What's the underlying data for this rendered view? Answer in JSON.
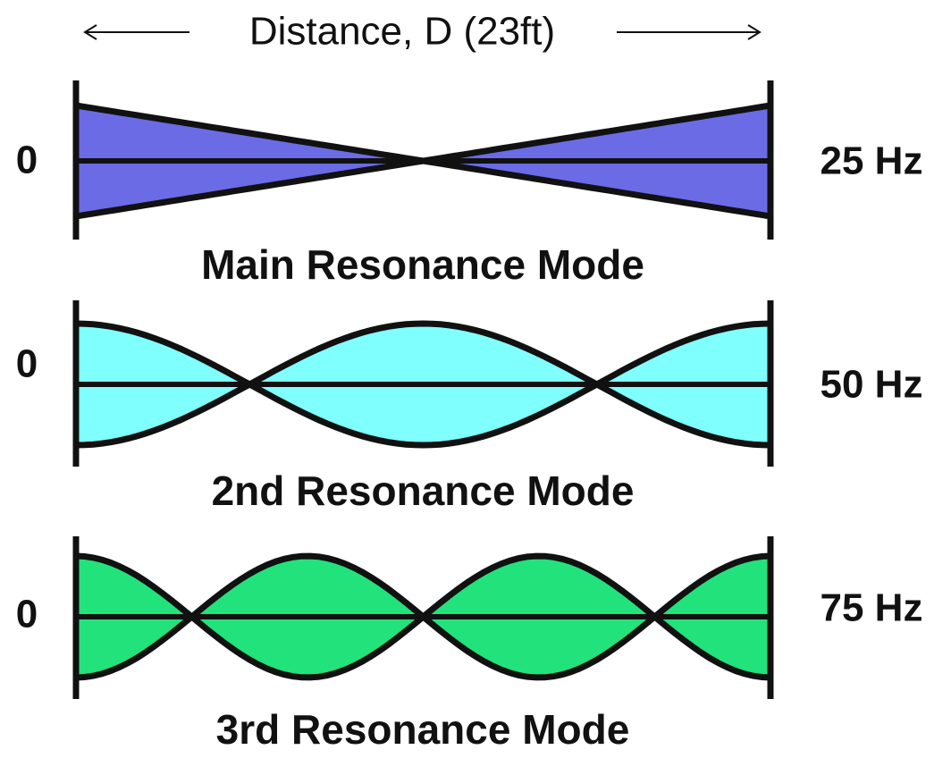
{
  "header": {
    "title": "Distance, D (23ft)"
  },
  "modes": [
    {
      "zero": "0",
      "frequency": "25 Hz",
      "name": "Main Resonance Mode"
    },
    {
      "zero": "0",
      "frequency": "50 Hz",
      "name": "2nd Resonance Mode"
    },
    {
      "zero": "0",
      "frequency": "75 Hz",
      "name": "3rd Resonance Mode"
    }
  ]
}
